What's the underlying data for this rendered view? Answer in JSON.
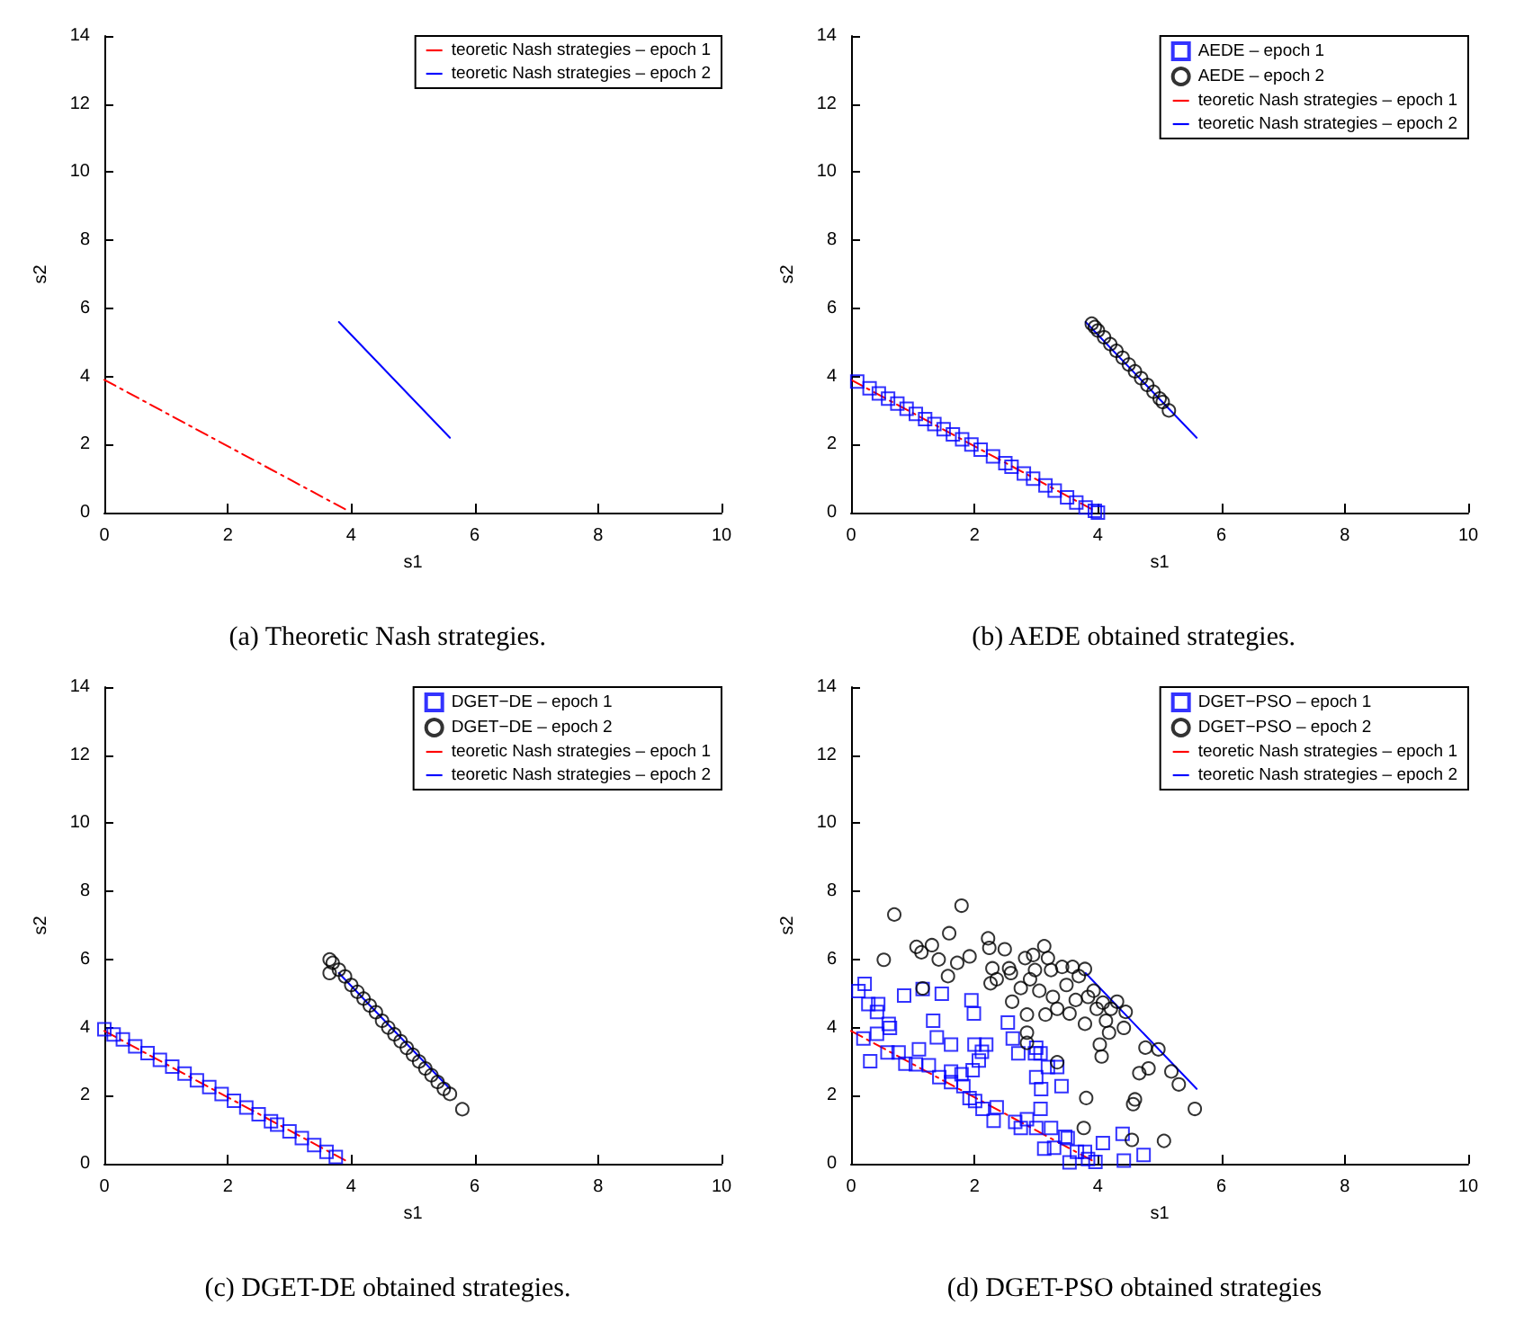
{
  "chart_data": [
    {
      "type": "line",
      "xlabel": "s1",
      "ylabel": "s2",
      "xlim": [
        0,
        10
      ],
      "ylim": [
        0,
        14
      ],
      "xticks": [
        0,
        2,
        4,
        6,
        8,
        10
      ],
      "yticks": [
        0,
        2,
        4,
        6,
        8,
        10,
        12,
        14
      ],
      "grid": false,
      "legend": "top right",
      "annotations": [
        "(a) Theoretic Nash strategies."
      ],
      "series": [
        {
          "name": "teoretic Nash strategies – epoch 1",
          "color": "#ff0000",
          "line_style": "dashed",
          "marker": "none",
          "x": [
            0,
            3.9
          ],
          "values": [
            3.9,
            0.1
          ]
        },
        {
          "name": "teoretic Nash strategies – epoch 2",
          "color": "#0000ff",
          "line_style": "solid",
          "marker": "none",
          "x": [
            3.8,
            5.6
          ],
          "values": [
            5.6,
            2.2
          ]
        }
      ]
    },
    {
      "type": "scatter",
      "xlabel": "s1",
      "ylabel": "s2",
      "xlim": [
        0,
        10
      ],
      "ylim": [
        0,
        14
      ],
      "xticks": [
        0,
        2,
        4,
        6,
        8,
        10
      ],
      "yticks": [
        0,
        2,
        4,
        6,
        8,
        10,
        12,
        14
      ],
      "grid": false,
      "legend": "top right",
      "annotations": [
        "(b) AEDE obtained strategies."
      ],
      "series": [
        {
          "name": "AEDE – epoch 1",
          "color": "#0000ff",
          "marker": "square",
          "x": [
            0.1,
            0.3,
            0.45,
            0.6,
            0.75,
            0.9,
            1.05,
            1.2,
            1.35,
            1.5,
            1.65,
            1.8,
            1.95,
            2.1,
            2.3,
            2.5,
            2.6,
            2.8,
            2.95,
            3.15,
            3.3,
            3.5,
            3.65,
            3.8,
            3.95,
            4.0
          ],
          "values": [
            3.85,
            3.65,
            3.5,
            3.35,
            3.2,
            3.05,
            2.9,
            2.75,
            2.6,
            2.45,
            2.3,
            2.15,
            2.0,
            1.85,
            1.65,
            1.45,
            1.35,
            1.15,
            1.0,
            0.8,
            0.65,
            0.45,
            0.3,
            0.15,
            0.05,
            0.0
          ]
        },
        {
          "name": "AEDE – epoch 2",
          "color": "#000000",
          "marker": "circle",
          "x": [
            3.9,
            3.95,
            4.0,
            4.1,
            4.2,
            4.3,
            4.4,
            4.5,
            4.6,
            4.7,
            4.8,
            4.9,
            5.0,
            5.05,
            5.15
          ],
          "values": [
            5.55,
            5.45,
            5.35,
            5.15,
            4.95,
            4.75,
            4.55,
            4.35,
            4.15,
            3.95,
            3.75,
            3.55,
            3.35,
            3.25,
            3.0
          ]
        },
        {
          "name": "teoretic Nash strategies – epoch 1",
          "color": "#ff0000",
          "type": "line",
          "line_style": "dashed",
          "marker": "none",
          "x": [
            0,
            3.9
          ],
          "values": [
            3.9,
            0.1
          ]
        },
        {
          "name": "teoretic Nash strategies – epoch 2",
          "color": "#0000ff",
          "type": "line",
          "line_style": "solid",
          "marker": "none",
          "x": [
            3.8,
            5.6
          ],
          "values": [
            5.6,
            2.2
          ]
        }
      ]
    },
    {
      "type": "scatter",
      "xlabel": "s1",
      "ylabel": "s2",
      "xlim": [
        0,
        10
      ],
      "ylim": [
        0,
        14
      ],
      "xticks": [
        0,
        2,
        4,
        6,
        8,
        10
      ],
      "yticks": [
        0,
        2,
        4,
        6,
        8,
        10,
        12,
        14
      ],
      "grid": false,
      "legend": "top right",
      "annotations": [
        "(c) DGET-DE obtained strategies."
      ],
      "series": [
        {
          "name": "DGET−DE – epoch 1",
          "color": "#0000ff",
          "marker": "square",
          "x": [
            0,
            0.15,
            0.3,
            0.5,
            0.7,
            0.9,
            1.1,
            1.3,
            1.5,
            1.7,
            1.9,
            2.1,
            2.3,
            2.5,
            2.7,
            2.8,
            3.0,
            3.2,
            3.4,
            3.6,
            3.75
          ],
          "values": [
            3.95,
            3.8,
            3.65,
            3.45,
            3.25,
            3.05,
            2.85,
            2.65,
            2.45,
            2.25,
            2.05,
            1.85,
            1.65,
            1.45,
            1.25,
            1.15,
            0.95,
            0.75,
            0.55,
            0.35,
            0.2
          ]
        },
        {
          "name": "DGET−DE – epoch 2",
          "color": "#000000",
          "marker": "circle",
          "x": [
            3.65,
            3.7,
            3.65,
            3.8,
            3.9,
            4.0,
            4.1,
            4.2,
            4.3,
            4.4,
            4.5,
            4.6,
            4.7,
            4.8,
            4.9,
            5.0,
            5.1,
            5.2,
            5.3,
            5.4,
            5.5,
            5.6,
            5.8
          ],
          "values": [
            6.0,
            5.9,
            5.6,
            5.7,
            5.5,
            5.25,
            5.05,
            4.85,
            4.65,
            4.45,
            4.2,
            4.0,
            3.8,
            3.6,
            3.4,
            3.2,
            3.0,
            2.8,
            2.6,
            2.4,
            2.2,
            2.05,
            1.6
          ]
        },
        {
          "name": "teoretic Nash strategies – epoch 1",
          "color": "#ff0000",
          "type": "line",
          "line_style": "dashed",
          "marker": "none",
          "x": [
            0,
            3.9
          ],
          "values": [
            3.9,
            0.1
          ]
        },
        {
          "name": "teoretic Nash strategies – epoch 2",
          "color": "#0000ff",
          "type": "line",
          "line_style": "solid",
          "marker": "none",
          "x": [
            3.8,
            5.6
          ],
          "values": [
            5.6,
            2.2
          ]
        }
      ]
    },
    {
      "type": "scatter",
      "xlabel": "s1",
      "ylabel": "s2",
      "xlim": [
        0,
        10
      ],
      "ylim": [
        0,
        14
      ],
      "xticks": [
        0,
        2,
        4,
        6,
        8,
        10
      ],
      "yticks": [
        0,
        2,
        4,
        6,
        8,
        10,
        12,
        14
      ],
      "grid": false,
      "legend": "top right",
      "annotations": [
        "(d) DGET-PSO obtained strategies"
      ],
      "series": [
        {
          "name": "DGET−PSO – epoch 1",
          "color": "#0000ff",
          "marker": "square",
          "x": [
            0.12,
            0.22,
            0.28,
            0.44,
            0.42,
            0.2,
            0.42,
            0.31,
            0.61,
            0.63,
            0.59,
            0.77,
            0.86,
            0.88,
            1.1,
            1.05,
            1.26,
            1.33,
            1.39,
            1.16,
            1.47,
            1.43,
            1.62,
            1.62,
            1.62,
            1.79,
            1.82,
            1.95,
            1.99,
            2.0,
            2.19,
            1.97,
            2.07,
            2.12,
            1.92,
            2.01,
            2.13,
            2.31,
            2.36,
            2.54,
            2.62,
            2.71,
            2.66,
            2.75,
            2.85,
            2.98,
            3.0,
            3.07,
            3.0,
            3.08,
            3.07,
            3.0,
            3.19,
            3.34,
            3.41,
            3.24,
            3.13,
            3.29,
            3.47,
            3.51,
            3.54,
            3.66,
            3.79,
            3.84,
            3.96,
            4.08,
            4.4,
            4.42,
            4.74
          ],
          "values": [
            5.07,
            5.28,
            4.69,
            4.69,
            4.46,
            3.68,
            3.82,
            3.01,
            4.11,
            3.99,
            3.27,
            3.27,
            4.94,
            2.94,
            3.36,
            2.92,
            2.89,
            4.2,
            3.71,
            5.13,
            4.99,
            2.54,
            3.5,
            2.71,
            2.4,
            2.63,
            2.28,
            4.8,
            4.41,
            3.5,
            3.5,
            2.75,
            3.03,
            3.29,
            1.93,
            1.84,
            1.61,
            1.26,
            1.66,
            4.15,
            3.68,
            3.24,
            1.23,
            1.05,
            1.31,
            3.24,
            3.41,
            3.24,
            2.54,
            2.19,
            1.61,
            1.05,
            2.84,
            2.84,
            2.28,
            1.05,
            0.44,
            0.47,
            0.79,
            0.75,
            0.04,
            0.35,
            0.35,
            0.14,
            0.05,
            0.61,
            0.88,
            0.09,
            0.26
          ]
        },
        {
          "name": "DGET−PSO – epoch 2",
          "color": "#000000",
          "marker": "circle",
          "x": [
            0.7,
            0.53,
            1.06,
            1.14,
            1.31,
            1.42,
            1.16,
            1.59,
            1.57,
            1.72,
            1.79,
            1.92,
            2.22,
            2.24,
            2.26,
            2.29,
            2.36,
            2.49,
            2.56,
            2.59,
            2.61,
            2.75,
            2.82,
            2.85,
            2.85,
            2.85,
            2.9,
            2.95,
            2.98,
            3.05,
            3.13,
            3.19,
            3.24,
            3.27,
            3.34,
            3.34,
            3.42,
            3.49,
            3.54,
            3.59,
            3.64,
            3.69,
            3.79,
            3.81,
            3.77,
            3.84,
            3.93,
            3.98,
            4.03,
            4.06,
            4.08,
            4.13,
            4.18,
            4.21,
            4.31,
            4.42,
            4.45,
            4.55,
            4.57,
            4.6,
            4.67,
            4.77,
            4.82,
            4.98,
            5.07,
            5.19,
            5.31,
            5.57,
            3.79,
            3.15
          ],
          "values": [
            7.32,
            5.99,
            6.37,
            6.21,
            6.42,
            6.0,
            5.15,
            6.77,
            5.51,
            5.9,
            7.58,
            6.09,
            6.62,
            6.34,
            5.3,
            5.74,
            5.42,
            6.3,
            5.74,
            5.6,
            4.76,
            5.16,
            6.04,
            4.38,
            3.85,
            3.55,
            5.42,
            6.13,
            5.69,
            5.08,
            6.39,
            6.04,
            5.69,
            4.9,
            4.55,
            2.98,
            5.78,
            5.25,
            4.41,
            5.78,
            4.81,
            5.51,
            4.11,
            1.93,
            1.05,
            4.9,
            5.08,
            4.55,
            3.5,
            3.15,
            4.73,
            4.2,
            3.85,
            4.55,
            4.76,
            3.99,
            4.46,
            0.7,
            1.75,
            1.89,
            2.66,
            3.41,
            2.8,
            3.36,
            0.67,
            2.71,
            2.33,
            1.61,
            5.72,
            4.38
          ]
        },
        {
          "name": "teoretic Nash strategies – epoch 1",
          "color": "#ff0000",
          "type": "line",
          "line_style": "dashed",
          "marker": "none",
          "x": [
            0,
            3.9
          ],
          "values": [
            3.9,
            0.1
          ]
        },
        {
          "name": "teoretic Nash strategies – epoch 2",
          "color": "#0000ff",
          "type": "line",
          "line_style": "solid",
          "marker": "none",
          "x": [
            3.8,
            5.6
          ],
          "values": [
            5.6,
            2.2
          ]
        }
      ]
    }
  ]
}
